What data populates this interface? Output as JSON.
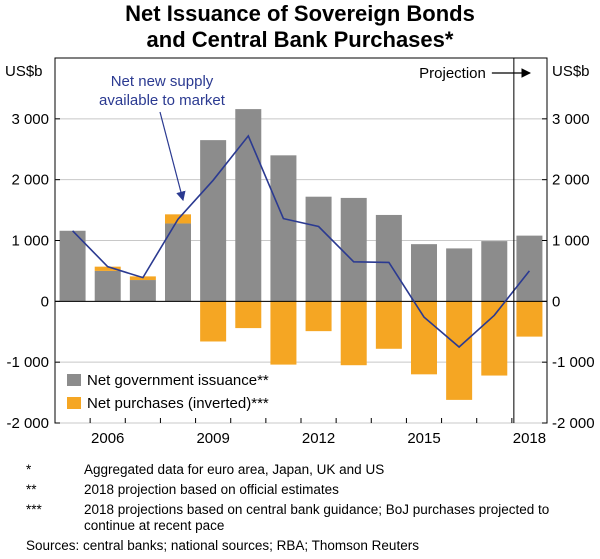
{
  "title": [
    "Net Issuance of Sovereign Bonds",
    "and Central Bank Purchases*"
  ],
  "chart_data": {
    "type": "bar",
    "y_unit_left": "US$b",
    "y_unit_right": "US$b",
    "ylim": [
      -2000,
      4000
    ],
    "y_ticks": [
      -2000,
      -1000,
      0,
      1000,
      2000,
      3000
    ],
    "y_tick_labels": [
      "-2 000",
      "-1 000",
      "0",
      "1 000",
      "2 000",
      "3 000"
    ],
    "categories": [
      2005,
      2006,
      2007,
      2008,
      2009,
      2010,
      2011,
      2012,
      2013,
      2014,
      2015,
      2016,
      2017,
      2018
    ],
    "x_tick_labels": [
      "2006",
      "2009",
      "2012",
      "2015",
      "2018"
    ],
    "x_tick_values": [
      2006,
      2009,
      2012,
      2015,
      2018
    ],
    "series": [
      {
        "name": "Net government issuance**",
        "color": "#8c8c8c",
        "kind": "bar",
        "values": [
          1160,
          500,
          350,
          1280,
          2650,
          3160,
          2400,
          1720,
          1700,
          1420,
          940,
          870,
          990,
          1080
        ]
      },
      {
        "name": "Net purchases (inverted)***",
        "color": "#f5a623",
        "kind": "bar",
        "values": [
          0,
          570,
          410,
          1430,
          -660,
          -440,
          -1040,
          -490,
          -1050,
          -780,
          -1200,
          -1620,
          -1220,
          -580
        ]
      },
      {
        "name": "Net new supply available to market",
        "color": "#2b3a91",
        "kind": "line",
        "values": [
          1160,
          570,
          390,
          1350,
          1990,
          2720,
          1360,
          1230,
          650,
          640,
          -260,
          -750,
          -230,
          500
        ]
      }
    ],
    "projection_label": "Projection",
    "line_annotation": [
      "Net new supply",
      "available to market"
    ],
    "legend_position": "bottom-left"
  },
  "notes": [
    {
      "mark": "*",
      "text": "Aggregated data for euro area, Japan, UK and US"
    },
    {
      "mark": "**",
      "text": "2018 projection based on official estimates"
    },
    {
      "mark": "***",
      "text": "2018 projections based on central bank guidance; BoJ purchases projected to continue at recent pace"
    }
  ],
  "source": "Sources: central banks; national sources; RBA; Thomson Reuters"
}
